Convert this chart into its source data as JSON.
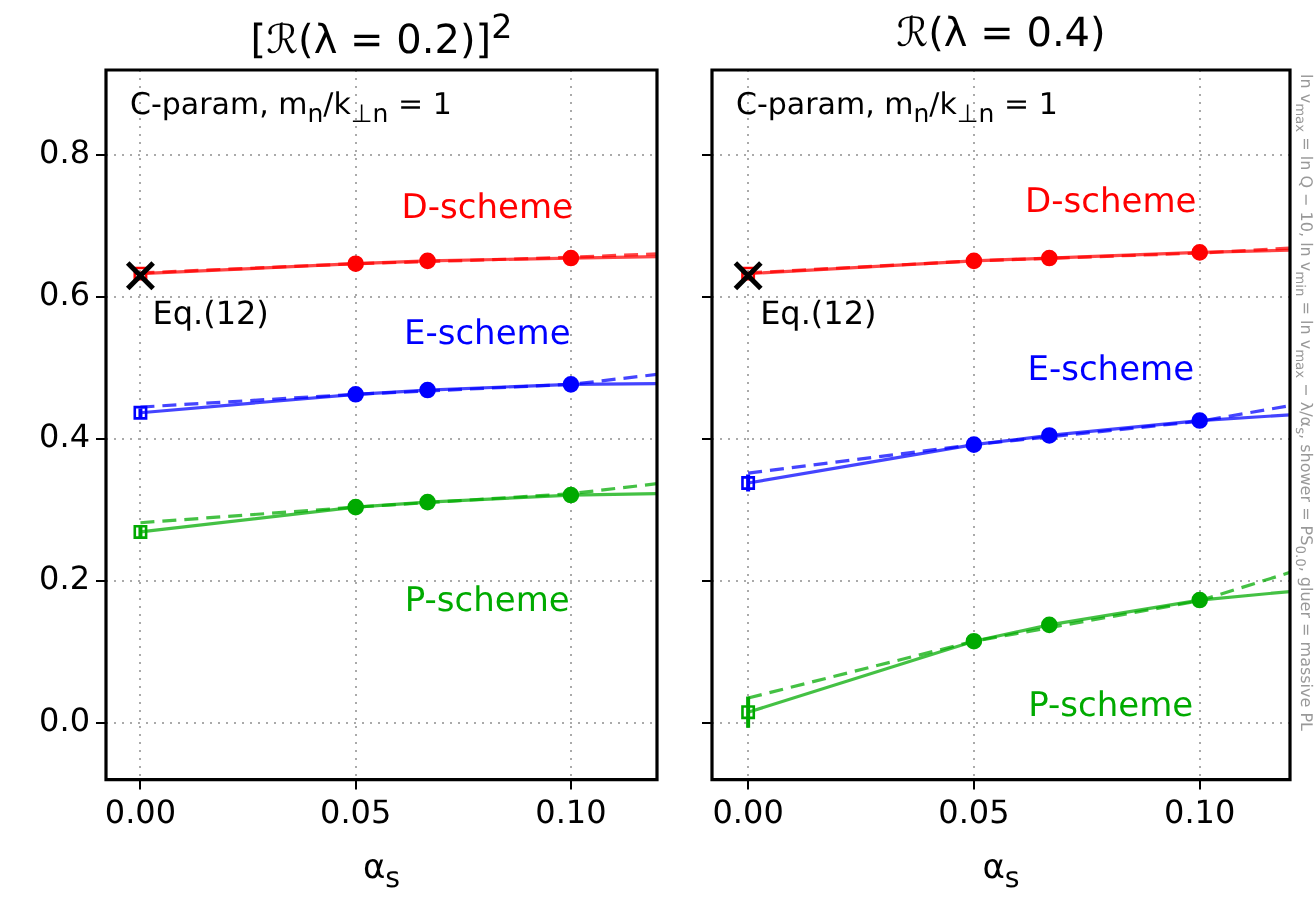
{
  "chart_data": [
    {
      "type": "line",
      "title": "[ℛ(λ = 0.2)]$^{2}$",
      "xlabel": "α$_{s}$",
      "xlim": [
        -0.008,
        0.12
      ],
      "xticks": [
        {
          "value": 0,
          "label": "0.00"
        },
        {
          "value": 0.05,
          "label": "0.05"
        },
        {
          "value": 0.1,
          "label": "0.10"
        }
      ],
      "ylim": [
        -0.08,
        0.92
      ],
      "yticks": [
        {
          "value": 0,
          "label": "0.0"
        },
        {
          "value": 0.2,
          "label": "0.2"
        },
        {
          "value": 0.4,
          "label": "0.4"
        },
        {
          "value": 0.6,
          "label": "0.6"
        },
        {
          "value": 0.8,
          "label": "0.8"
        }
      ],
      "grid": true,
      "legend": false,
      "annotations": [
        "C-param, m$_{n}$/k$_{⊥n}$ = 1",
        {
          "text": "Eq.(12)",
          "x": 0,
          "y": 0.63
        }
      ],
      "series": [
        {
          "marker": "none",
          "line_style": "solid",
          "color": "#ff0000",
          "x": [
            0,
            0.05,
            0.0667,
            0.1,
            0.12
          ],
          "values": [
            0.633,
            0.647,
            0.651,
            0.655,
            0.657
          ]
        },
        {
          "marker": "none",
          "line_style": "dashed",
          "color": "#ff0000",
          "x": [
            0,
            0.05,
            0.1,
            0.12
          ],
          "values": [
            0.634,
            0.647,
            0.656,
            0.661
          ]
        },
        {
          "type": "scatter",
          "marker": "circle",
          "name": "D-scheme",
          "color": "#ff0000",
          "x": [
            0.05,
            0.0667,
            0.1
          ],
          "values": [
            0.647,
            0.651,
            0.655
          ]
        },
        {
          "type": "scatter",
          "marker": "square",
          "color": "#ff0000",
          "x": [
            0
          ],
          "values": [
            0.633
          ]
        },
        {
          "marker": "none",
          "line_style": "solid",
          "color": "#0000ff",
          "x": [
            0,
            0.05,
            0.0667,
            0.1,
            0.12
          ],
          "values": [
            0.437,
            0.463,
            0.469,
            0.477,
            0.478
          ]
        },
        {
          "marker": "none",
          "line_style": "dashed",
          "color": "#0000ff",
          "x": [
            0,
            0.05,
            0.1,
            0.12
          ],
          "values": [
            0.445,
            0.463,
            0.477,
            0.491
          ]
        },
        {
          "type": "scatter",
          "marker": "circle",
          "name": "E-scheme",
          "color": "#0000ff",
          "x": [
            0.05,
            0.0667,
            0.1
          ],
          "values": [
            0.463,
            0.469,
            0.477
          ]
        },
        {
          "type": "scatter",
          "marker": "square",
          "color": "#0000ff",
          "x": [
            0
          ],
          "values": [
            0.437
          ],
          "errors": [
            0.006
          ]
        },
        {
          "marker": "none",
          "line_style": "solid",
          "color": "#00aa00",
          "x": [
            0,
            0.05,
            0.0667,
            0.1,
            0.12
          ],
          "values": [
            0.269,
            0.304,
            0.311,
            0.321,
            0.323
          ]
        },
        {
          "marker": "none",
          "line_style": "dashed",
          "color": "#00aa00",
          "x": [
            0,
            0.05,
            0.1,
            0.12
          ],
          "values": [
            0.282,
            0.304,
            0.323,
            0.337
          ]
        },
        {
          "type": "scatter",
          "marker": "circle",
          "name": "P-scheme",
          "color": "#00aa00",
          "x": [
            0.05,
            0.0667,
            0.1
          ],
          "values": [
            0.304,
            0.311,
            0.321
          ]
        },
        {
          "type": "scatter",
          "marker": "square",
          "color": "#00aa00",
          "x": [
            0
          ],
          "values": [
            0.269
          ],
          "errors": [
            0.008
          ]
        },
        {
          "type": "scatter",
          "marker": "cross",
          "color": "#000000",
          "x": [
            0
          ],
          "values": [
            0.63
          ]
        }
      ]
    },
    {
      "type": "line",
      "title": "ℛ(λ = 0.4)",
      "xlabel": "α$_{s}$",
      "tick_labels": "x",
      "xlim": [
        -0.008,
        0.12
      ],
      "xticks": [
        {
          "value": 0,
          "label": "0.00"
        },
        {
          "value": 0.05,
          "label": "0.05"
        },
        {
          "value": 0.1,
          "label": "0.10"
        }
      ],
      "ylim": [
        -0.08,
        0.92
      ],
      "yticks": [
        {
          "value": 0,
          "label": null
        },
        {
          "value": 0.2,
          "label": null
        },
        {
          "value": 0.4,
          "label": null
        },
        {
          "value": 0.6,
          "label": null
        },
        {
          "value": 0.8,
          "label": null
        }
      ],
      "grid": true,
      "legend": false,
      "annotations": [
        "C-param, m$_{n}$/k$_{⊥n}$ = 1",
        {
          "text": "Eq.(12)",
          "x": 0,
          "y": 0.63
        },
        "ln v$_{max}$ = ln Q − 10, ln v$_{min}$ = ln v$_{max}$ − λ/α$_{s}$, shower = PS$_{0.0}$, gluer = massive PL"
      ],
      "series": [
        {
          "marker": "none",
          "line_style": "solid",
          "color": "#ff0000",
          "x": [
            0,
            0.05,
            0.0667,
            0.1,
            0.12
          ],
          "values": [
            0.633,
            0.651,
            0.655,
            0.663,
            0.666
          ]
        },
        {
          "marker": "none",
          "line_style": "dashed",
          "color": "#ff0000",
          "x": [
            0,
            0.05,
            0.1,
            0.12
          ],
          "values": [
            0.634,
            0.651,
            0.662,
            0.669
          ]
        },
        {
          "type": "scatter",
          "marker": "circle",
          "name": "D-scheme",
          "color": "#ff0000",
          "x": [
            0.05,
            0.0667,
            0.1
          ],
          "values": [
            0.651,
            0.655,
            0.663
          ]
        },
        {
          "type": "scatter",
          "marker": "square",
          "color": "#ff0000",
          "x": [
            0
          ],
          "values": [
            0.633
          ]
        },
        {
          "marker": "none",
          "line_style": "solid",
          "color": "#0000ff",
          "x": [
            0,
            0.05,
            0.0667,
            0.1,
            0.12
          ],
          "values": [
            0.338,
            0.392,
            0.405,
            0.426,
            0.434
          ]
        },
        {
          "marker": "none",
          "line_style": "dashed",
          "color": "#0000ff",
          "x": [
            0,
            0.05,
            0.1,
            0.12
          ],
          "values": [
            0.352,
            0.392,
            0.425,
            0.447
          ]
        },
        {
          "type": "scatter",
          "marker": "circle",
          "name": "E-scheme",
          "color": "#0000ff",
          "x": [
            0.05,
            0.0667,
            0.1
          ],
          "values": [
            0.392,
            0.405,
            0.426
          ]
        },
        {
          "type": "scatter",
          "marker": "square",
          "color": "#0000ff",
          "x": [
            0
          ],
          "values": [
            0.338
          ],
          "errors": [
            0.012
          ]
        },
        {
          "marker": "none",
          "line_style": "solid",
          "color": "#00aa00",
          "x": [
            0,
            0.05,
            0.0667,
            0.1,
            0.12
          ],
          "values": [
            0.015,
            0.115,
            0.138,
            0.173,
            0.185
          ]
        },
        {
          "marker": "none",
          "line_style": "dashed",
          "color": "#00aa00",
          "x": [
            0,
            0.05,
            0.1,
            0.12
          ],
          "values": [
            0.035,
            0.115,
            0.172,
            0.212
          ]
        },
        {
          "type": "scatter",
          "marker": "circle",
          "name": "P-scheme",
          "color": "#00aa00",
          "x": [
            0.05,
            0.0667,
            0.1
          ],
          "values": [
            0.115,
            0.138,
            0.173
          ]
        },
        {
          "type": "scatter",
          "marker": "square",
          "color": "#00aa00",
          "x": [
            0
          ],
          "values": [
            0.015
          ],
          "errors": [
            0.022
          ]
        },
        {
          "type": "scatter",
          "marker": "cross",
          "color": "#000000",
          "x": [
            0
          ],
          "values": [
            0.63
          ]
        }
      ]
    }
  ]
}
